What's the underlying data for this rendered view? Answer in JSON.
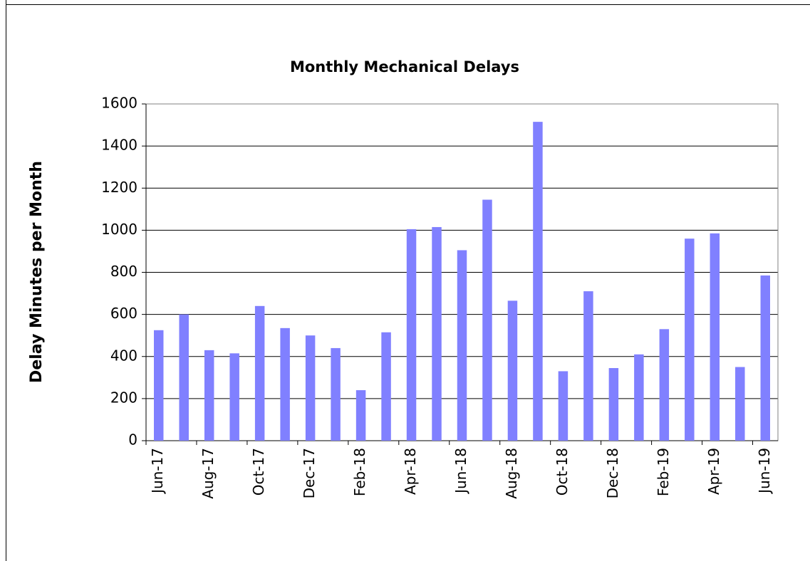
{
  "chart_data": {
    "type": "bar",
    "title": "Monthly Mechanical Delays",
    "y_label": "Delay Minutes per Month",
    "categories": [
      "Jun-17",
      null,
      "Aug-17",
      null,
      "Oct-17",
      null,
      "Dec-17",
      null,
      "Feb-18",
      null,
      "Apr-18",
      null,
      "Jun-18",
      null,
      "Aug-18",
      null,
      "Oct-18",
      null,
      "Dec-18",
      null,
      "Feb-19",
      null,
      "Apr-19",
      null,
      "Jun-19"
    ],
    "values": [
      525,
      600,
      430,
      415,
      640,
      535,
      500,
      440,
      240,
      515,
      1005,
      1015,
      905,
      1145,
      665,
      1515,
      330,
      710,
      345,
      410,
      530,
      960,
      985,
      350,
      785
    ],
    "color": "#8080ff",
    "ylim": [
      0,
      1600
    ],
    "yticks": [
      0,
      200,
      400,
      600,
      800,
      1000,
      1200,
      1400,
      1600
    ],
    "grid": true
  }
}
